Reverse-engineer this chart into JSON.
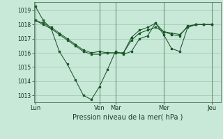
{
  "bg_color": "#c8e8d8",
  "grid_color": "#a8c8b8",
  "line_color": "#1a5528",
  "title": "Pression niveau de la mer( hPa )",
  "ylim": [
    1012.5,
    1019.6
  ],
  "yticks": [
    1013,
    1014,
    1015,
    1016,
    1017,
    1018,
    1019
  ],
  "day_labels": [
    "Lun",
    "Ven",
    "Mar",
    "Mer",
    "Jeu"
  ],
  "day_x": [
    0,
    96,
    120,
    192,
    264
  ],
  "xlim": [
    -2,
    278
  ],
  "line1_x": [
    0,
    12,
    24,
    36,
    48,
    60,
    72,
    84,
    96,
    108,
    120,
    132,
    144,
    156,
    168,
    180,
    192,
    204,
    216,
    228,
    240,
    252,
    264
  ],
  "line1_y": [
    1019.3,
    1018.3,
    1017.7,
    1016.1,
    1015.2,
    1014.1,
    1013.0,
    1012.7,
    1013.6,
    1014.8,
    1016.1,
    1015.9,
    1016.1,
    1017.0,
    1017.2,
    1018.1,
    1017.3,
    1016.3,
    1016.1,
    1017.8,
    1018.0,
    1018.0,
    1018.0
  ],
  "line2_x": [
    0,
    12,
    24,
    36,
    48,
    60,
    72,
    84,
    96,
    108,
    120,
    132,
    144,
    156,
    168,
    180,
    192,
    204,
    216,
    228,
    240,
    252,
    264
  ],
  "line2_y": [
    1018.3,
    1018.0,
    1017.7,
    1017.3,
    1016.9,
    1016.5,
    1016.1,
    1015.9,
    1015.9,
    1016.0,
    1016.0,
    1016.0,
    1016.9,
    1017.4,
    1017.6,
    1017.8,
    1017.5,
    1017.4,
    1017.3,
    1017.8,
    1018.0,
    1018.0,
    1018.0
  ],
  "line3_x": [
    0,
    12,
    24,
    36,
    48,
    60,
    72,
    84,
    96,
    108,
    120,
    132,
    144,
    156,
    168,
    180,
    192,
    204,
    216,
    228,
    240,
    252,
    264
  ],
  "line3_y": [
    1018.3,
    1018.1,
    1017.8,
    1017.4,
    1017.0,
    1016.6,
    1016.2,
    1016.0,
    1016.1,
    1016.0,
    1016.0,
    1016.0,
    1017.1,
    1017.6,
    1017.8,
    1018.1,
    1017.5,
    1017.3,
    1017.2,
    1017.9,
    1018.0,
    1018.0,
    1018.0
  ]
}
